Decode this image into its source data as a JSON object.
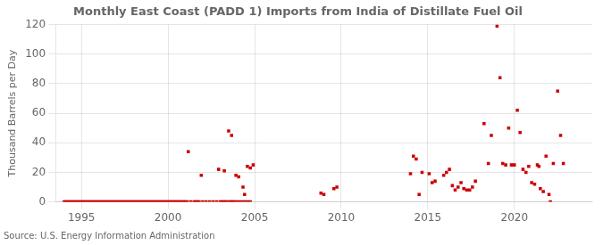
{
  "chart_data": {
    "type": "scatter",
    "title": "Monthly East Coast (PADD 1) Imports from India of Distillate Fuel Oil",
    "ylabel": "Thousand Barrels per Day",
    "annotations": [
      "Source: U.S. Energy Information Administration"
    ],
    "color": "#cc0000",
    "marker": "square",
    "grid": true,
    "xlim": [
      1993.5,
      2024.5
    ],
    "ylim": [
      0,
      120
    ],
    "xticks": [
      1995,
      2000,
      2005,
      2010,
      2015,
      2020
    ],
    "yticks": [
      0,
      20,
      40,
      60,
      80,
      100,
      120
    ],
    "x": [
      1994.0,
      1994.1,
      1994.2,
      1994.3,
      1994.4,
      1994.5,
      1994.6,
      1994.7,
      1994.8,
      1994.9,
      1995.0,
      1995.1,
      1995.2,
      1995.3,
      1995.4,
      1995.5,
      1995.6,
      1995.7,
      1995.8,
      1995.9,
      1996.0,
      1996.1,
      1996.2,
      1996.3,
      1996.4,
      1996.5,
      1996.6,
      1996.7,
      1996.8,
      1996.9,
      1997.0,
      1997.1,
      1997.2,
      1997.3,
      1997.4,
      1997.5,
      1997.6,
      1997.7,
      1997.8,
      1997.9,
      1998.0,
      1998.1,
      1998.2,
      1998.3,
      1998.4,
      1998.5,
      1998.6,
      1998.7,
      1998.8,
      1998.9,
      1999.0,
      1999.1,
      1999.2,
      1999.3,
      1999.4,
      1999.5,
      1999.6,
      1999.7,
      1999.8,
      1999.9,
      2000.0,
      2000.1,
      2000.2,
      2000.3,
      2000.4,
      2000.5,
      2000.6,
      2000.7,
      2000.8,
      2000.9,
      2001.0,
      2001.1,
      2001.3,
      2001.5,
      2001.6,
      2001.7,
      2001.8,
      2002.0,
      2002.2,
      2002.4,
      2002.6,
      2002.8,
      2003.0,
      2003.1,
      2003.2,
      2003.3,
      2003.4,
      2003.55,
      2003.65,
      2003.75,
      2003.85,
      2004.0,
      2004.15,
      2004.3,
      2004.45,
      2004.6,
      2004.75,
      2001.17,
      2001.92,
      2002.92,
      2003.25,
      2003.5,
      2003.67,
      2003.92,
      2004.08,
      2004.33,
      2004.42,
      2004.58,
      2004.75,
      2004.92,
      2008.83,
      2009.0,
      2009.58,
      2009.75,
      2014.0,
      2014.17,
      2014.33,
      2014.5,
      2014.67,
      2015.08,
      2015.25,
      2015.42,
      2015.92,
      2016.08,
      2016.25,
      2016.42,
      2016.58,
      2016.75,
      2016.92,
      2017.08,
      2017.25,
      2017.42,
      2017.58,
      2017.75,
      2018.25,
      2018.5,
      2018.67,
      2019.0,
      2019.17,
      2019.33,
      2019.5,
      2019.67,
      2019.83,
      2020.0,
      2020.17,
      2020.33,
      2020.5,
      2020.67,
      2020.83,
      2021.0,
      2021.17,
      2021.33,
      2021.42,
      2021.5,
      2021.67,
      2021.83,
      2022.0,
      2022.08,
      2022.25,
      2022.5,
      2022.67,
      2022.83
    ],
    "values": [
      0,
      0,
      0,
      0,
      0,
      0,
      0,
      0,
      0,
      0,
      0,
      0,
      0,
      0,
      0,
      0,
      0,
      0,
      0,
      0,
      0,
      0,
      0,
      0,
      0,
      0,
      0,
      0,
      0,
      0,
      0,
      0,
      0,
      0,
      0,
      0,
      0,
      0,
      0,
      0,
      0,
      0,
      0,
      0,
      0,
      0,
      0,
      0,
      0,
      0,
      0,
      0,
      0,
      0,
      0,
      0,
      0,
      0,
      0,
      0,
      0,
      0,
      0,
      0,
      0,
      0,
      0,
      0,
      0,
      0,
      0,
      0,
      0,
      0,
      0,
      0,
      0,
      0,
      0,
      0,
      0,
      0,
      0,
      0,
      0,
      0,
      0,
      0,
      0,
      0,
      0,
      0,
      0,
      0,
      0,
      0,
      0,
      34,
      18,
      22,
      21,
      48,
      45,
      18,
      17,
      10,
      5,
      24,
      23,
      25,
      6,
      5,
      9,
      10,
      19,
      31,
      29,
      5,
      20,
      19,
      13,
      14,
      18,
      20,
      22,
      11,
      8,
      10,
      13,
      9,
      8,
      8,
      10,
      14,
      53,
      26,
      45,
      119,
      84,
      26,
      25,
      50,
      25,
      25,
      62,
      47,
      22,
      20,
      24,
      13,
      12,
      25,
      24,
      9,
      7,
      31,
      5,
      0,
      26,
      75,
      45,
      26
    ]
  }
}
